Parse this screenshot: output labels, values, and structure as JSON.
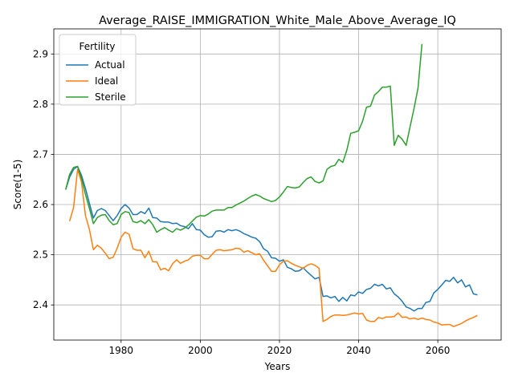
{
  "chart_data": {
    "type": "line",
    "title": "Average_RAISE_IMMIGRATION_White_Male_Above_Average_IQ",
    "xlabel": "Years",
    "ylabel": "Score(1-5)",
    "xlim": [
      1963,
      2076
    ],
    "ylim": [
      2.33,
      2.95
    ],
    "xticks": [
      1980,
      2000,
      2020,
      2040,
      2060
    ],
    "yticks": [
      2.4,
      2.5,
      2.6,
      2.7,
      2.8,
      2.9
    ],
    "xtick_labels": [
      "1980",
      "2000",
      "2020",
      "2040",
      "2060"
    ],
    "ytick_labels": [
      "2.4",
      "2.5",
      "2.6",
      "2.7",
      "2.8",
      "2.9"
    ],
    "grid": true,
    "legend": {
      "title": "Fertility",
      "placement": "upper-left"
    },
    "series": [
      {
        "name": "Actual",
        "color": "#1f77b4",
        "x": [
          1966,
          1967,
          1968,
          1969,
          1970,
          1971,
          1972,
          1973,
          1974,
          1975,
          1976,
          1977,
          1978,
          1979,
          1980,
          1981,
          1982,
          1983,
          1984,
          1985,
          1986,
          1987,
          1988,
          1989,
          1990,
          1991,
          1992,
          1993,
          1994,
          1995,
          1996,
          1997,
          1998,
          1999,
          2000,
          2001,
          2002,
          2003,
          2004,
          2005,
          2006,
          2007,
          2008,
          2009,
          2010,
          2011,
          2012,
          2013,
          2014,
          2015,
          2016,
          2017,
          2018,
          2019,
          2020,
          2021,
          2022,
          2023,
          2024,
          2025,
          2026,
          2027,
          2028,
          2029,
          2030,
          2031,
          2032,
          2033,
          2034,
          2035,
          2036,
          2037,
          2038,
          2039,
          2040,
          2041,
          2042,
          2043,
          2044,
          2045,
          2046,
          2047,
          2048,
          2049,
          2050,
          2051,
          2052,
          2053,
          2054,
          2055,
          2056,
          2057,
          2058,
          2059,
          2060,
          2061,
          2062,
          2063,
          2064,
          2065,
          2066,
          2067,
          2068,
          2069,
          2070
        ],
        "values": [
          2.63,
          2.655,
          2.67,
          2.676,
          2.658,
          2.632,
          2.602,
          2.573,
          2.588,
          2.592,
          2.588,
          2.578,
          2.568,
          2.578,
          2.592,
          2.6,
          2.593,
          2.58,
          2.58,
          2.586,
          2.582,
          2.593,
          2.574,
          2.573,
          2.566,
          2.565,
          2.565,
          2.562,
          2.563,
          2.558,
          2.556,
          2.552,
          2.562,
          2.55,
          2.549,
          2.54,
          2.535,
          2.536,
          2.547,
          2.548,
          2.545,
          2.55,
          2.548,
          2.55,
          2.547,
          2.542,
          2.539,
          2.535,
          2.533,
          2.526,
          2.512,
          2.507,
          2.494,
          2.493,
          2.487,
          2.49,
          2.475,
          2.472,
          2.467,
          2.468,
          2.474,
          2.466,
          2.459,
          2.452,
          2.455,
          2.417,
          2.418,
          2.414,
          2.417,
          2.407,
          2.415,
          2.408,
          2.42,
          2.418,
          2.426,
          2.423,
          2.431,
          2.433,
          2.441,
          2.438,
          2.441,
          2.432,
          2.434,
          2.422,
          2.416,
          2.407,
          2.396,
          2.393,
          2.388,
          2.393,
          2.393,
          2.405,
          2.407,
          2.424,
          2.431,
          2.44,
          2.449,
          2.447,
          2.455,
          2.444,
          2.45,
          2.436,
          2.44,
          2.422,
          2.42
        ]
      },
      {
        "name": "Ideal",
        "color": "#ff7f0e",
        "x": [
          1967,
          1968,
          1969,
          1970,
          1971,
          1972,
          1973,
          1974,
          1975,
          1976,
          1977,
          1978,
          1979,
          1980,
          1981,
          1982,
          1983,
          1984,
          1985,
          1986,
          1987,
          1988,
          1989,
          1990,
          1991,
          1992,
          1993,
          1994,
          1995,
          1996,
          1997,
          1998,
          1999,
          2000,
          2001,
          2002,
          2003,
          2004,
          2005,
          2006,
          2007,
          2008,
          2009,
          2010,
          2011,
          2012,
          2013,
          2014,
          2015,
          2016,
          2017,
          2018,
          2019,
          2020,
          2021,
          2022,
          2023,
          2024,
          2025,
          2026,
          2027,
          2028,
          2029,
          2030,
          2031,
          2032,
          2033,
          2034,
          2035,
          2036,
          2037,
          2038,
          2039,
          2040,
          2041,
          2042,
          2043,
          2044,
          2045,
          2046,
          2047,
          2048,
          2049,
          2050,
          2051,
          2052,
          2053,
          2054,
          2055,
          2056,
          2057,
          2058,
          2059,
          2060,
          2061,
          2062,
          2063,
          2064,
          2065,
          2066,
          2067,
          2068,
          2069,
          2070
        ],
        "values": [
          2.567,
          2.594,
          2.67,
          2.645,
          2.578,
          2.55,
          2.51,
          2.519,
          2.513,
          2.503,
          2.492,
          2.495,
          2.513,
          2.535,
          2.545,
          2.541,
          2.512,
          2.509,
          2.509,
          2.494,
          2.507,
          2.486,
          2.486,
          2.47,
          2.473,
          2.468,
          2.482,
          2.49,
          2.483,
          2.487,
          2.49,
          2.497,
          2.499,
          2.499,
          2.492,
          2.492,
          2.501,
          2.509,
          2.51,
          2.508,
          2.509,
          2.51,
          2.513,
          2.512,
          2.505,
          2.508,
          2.504,
          2.5,
          2.502,
          2.489,
          2.478,
          2.467,
          2.467,
          2.48,
          2.487,
          2.488,
          2.483,
          2.479,
          2.476,
          2.473,
          2.479,
          2.482,
          2.479,
          2.473,
          2.367,
          2.371,
          2.377,
          2.38,
          2.38,
          2.379,
          2.38,
          2.382,
          2.384,
          2.382,
          2.383,
          2.37,
          2.367,
          2.367,
          2.375,
          2.373,
          2.376,
          2.376,
          2.377,
          2.384,
          2.375,
          2.376,
          2.372,
          2.374,
          2.371,
          2.374,
          2.371,
          2.37,
          2.366,
          2.364,
          2.36,
          2.361,
          2.361,
          2.357,
          2.36,
          2.363,
          2.368,
          2.372,
          2.375,
          2.379
        ]
      },
      {
        "name": "Sterile",
        "color": "#2ca02c",
        "x": [
          1966,
          1967,
          1968,
          1969,
          1970,
          1971,
          1972,
          1973,
          1974,
          1975,
          1976,
          1977,
          1978,
          1979,
          1980,
          1981,
          1982,
          1983,
          1984,
          1985,
          1986,
          1987,
          1988,
          1989,
          1990,
          1991,
          1992,
          1993,
          1994,
          1995,
          1996,
          1997,
          1998,
          1999,
          2000,
          2001,
          2002,
          2003,
          2004,
          2005,
          2006,
          2007,
          2008,
          2009,
          2010,
          2011,
          2012,
          2013,
          2014,
          2015,
          2016,
          2017,
          2018,
          2019,
          2020,
          2021,
          2022,
          2023,
          2024,
          2025,
          2026,
          2027,
          2028,
          2029,
          2030,
          2031,
          2032,
          2033,
          2034,
          2035,
          2036,
          2037,
          2038,
          2039,
          2040,
          2041,
          2042,
          2043,
          2044,
          2045,
          2046,
          2047,
          2048,
          2049,
          2050,
          2051,
          2052,
          2053,
          2054,
          2055,
          2056
        ],
        "values": [
          2.63,
          2.66,
          2.674,
          2.676,
          2.652,
          2.62,
          2.592,
          2.562,
          2.574,
          2.579,
          2.58,
          2.568,
          2.56,
          2.562,
          2.58,
          2.586,
          2.584,
          2.566,
          2.564,
          2.568,
          2.562,
          2.57,
          2.56,
          2.545,
          2.55,
          2.554,
          2.549,
          2.545,
          2.552,
          2.549,
          2.553,
          2.559,
          2.567,
          2.575,
          2.578,
          2.577,
          2.581,
          2.587,
          2.589,
          2.589,
          2.589,
          2.594,
          2.594,
          2.599,
          2.603,
          2.607,
          2.612,
          2.617,
          2.62,
          2.617,
          2.612,
          2.609,
          2.606,
          2.608,
          2.615,
          2.625,
          2.636,
          2.634,
          2.633,
          2.635,
          2.644,
          2.652,
          2.655,
          2.646,
          2.643,
          2.647,
          2.67,
          2.676,
          2.678,
          2.69,
          2.684,
          2.708,
          2.742,
          2.744,
          2.747,
          2.766,
          2.794,
          2.796,
          2.818,
          2.825,
          2.834,
          2.834,
          2.836,
          2.718,
          2.738,
          2.73,
          2.718,
          2.755,
          2.792,
          2.832,
          2.92
        ]
      }
    ]
  }
}
